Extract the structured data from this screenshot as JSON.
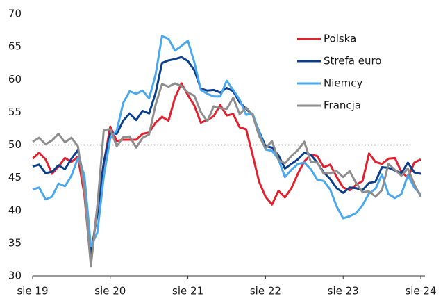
{
  "chart_data": {
    "type": "line",
    "categories": [
      "sie 19",
      null,
      null,
      null,
      null,
      null,
      null,
      null,
      null,
      null,
      null,
      null,
      "sie 20",
      null,
      null,
      null,
      null,
      null,
      null,
      null,
      null,
      null,
      null,
      null,
      "sie 21",
      null,
      null,
      null,
      null,
      null,
      null,
      null,
      null,
      null,
      null,
      null,
      "sie 22",
      null,
      null,
      null,
      null,
      null,
      null,
      null,
      null,
      null,
      null,
      null,
      "sie 23",
      null,
      null,
      null,
      null,
      null,
      null,
      null,
      null,
      null,
      null,
      null,
      "sie 24"
    ],
    "ylim": [
      30,
      70
    ],
    "yticks": [
      30,
      35,
      40,
      45,
      50,
      55,
      60,
      65,
      70
    ],
    "reference_line": 50,
    "legend": "upper right",
    "series": [
      {
        "name": "Polska",
        "color": "#e2202e",
        "values": [
          47.9,
          48.8,
          47.8,
          45.6,
          46.7,
          48.0,
          47.4,
          48.2,
          42.4,
          31.9,
          40.6,
          47.2,
          52.8,
          50.6,
          50.8,
          50.8,
          50.8,
          51.7,
          51.9,
          53.4,
          54.3,
          53.7,
          57.2,
          59.4,
          57.6,
          56.0,
          53.4,
          53.8,
          54.4,
          56.1,
          54.5,
          54.7,
          52.7,
          52.4,
          48.5,
          44.4,
          42.1,
          40.9,
          43.0,
          42.0,
          43.4,
          45.6,
          47.5,
          48.5,
          48.3,
          46.6,
          47.0,
          45.1,
          43.5,
          43.1,
          43.9,
          44.5,
          48.7,
          47.4,
          47.1,
          47.9,
          48.0,
          45.9,
          45.0,
          47.3,
          47.8
        ]
      },
      {
        "name": "Strefa euro",
        "color": "#0b3f8c",
        "values": [
          46.7,
          47.0,
          45.7,
          45.9,
          46.9,
          46.3,
          47.9,
          49.2,
          44.5,
          33.4,
          39.4,
          47.4,
          51.8,
          51.7,
          53.7,
          54.8,
          53.8,
          55.2,
          54.8,
          57.9,
          62.5,
          62.9,
          63.1,
          63.4,
          62.8,
          61.4,
          58.6,
          58.3,
          58.4,
          58.0,
          58.7,
          58.2,
          56.5,
          55.5,
          54.6,
          52.1,
          49.8,
          49.6,
          48.4,
          46.4,
          47.1,
          47.8,
          48.8,
          48.5,
          47.3,
          45.8,
          44.8,
          43.4,
          42.7,
          43.5,
          43.4,
          43.1,
          44.2,
          44.4,
          46.6,
          46.5,
          46.1,
          45.7,
          47.3,
          45.8,
          45.6
        ]
      },
      {
        "name": "Niemcy",
        "color": "#4aa8ef",
        "values": [
          43.2,
          43.5,
          41.7,
          42.1,
          44.1,
          43.7,
          45.3,
          48.0,
          45.4,
          34.5,
          36.6,
          45.2,
          51.0,
          52.2,
          56.4,
          58.2,
          57.8,
          58.3,
          57.1,
          60.7,
          66.6,
          66.2,
          64.4,
          65.1,
          65.9,
          62.6,
          58.4,
          57.8,
          57.4,
          57.4,
          59.8,
          58.4,
          56.9,
          54.6,
          54.8,
          52.0,
          49.3,
          49.1,
          47.8,
          45.1,
          46.2,
          47.1,
          47.3,
          46.3,
          44.7,
          44.5,
          43.2,
          40.6,
          38.8,
          39.1,
          39.6,
          40.8,
          42.6,
          43.3,
          45.5,
          42.5,
          41.9,
          42.5,
          45.4,
          43.5,
          42.4
        ]
      },
      {
        "name": "Francja",
        "color": "#8e8e8e",
        "values": [
          50.5,
          51.1,
          50.1,
          50.7,
          51.7,
          50.4,
          51.1,
          49.8,
          43.2,
          31.5,
          40.6,
          52.3,
          52.4,
          49.8,
          51.2,
          51.3,
          49.6,
          51.1,
          51.6,
          56.1,
          59.3,
          58.9,
          59.4,
          59.0,
          58.0,
          57.5,
          55.0,
          53.6,
          55.9,
          55.6,
          55.5,
          57.2,
          54.7,
          55.7,
          54.6,
          51.4,
          49.5,
          50.6,
          47.7,
          47.2,
          48.3,
          49.2,
          50.5,
          47.4,
          47.3,
          45.6,
          45.7,
          46.0,
          45.1,
          46.0,
          44.2,
          42.8,
          42.9,
          42.1,
          43.1,
          47.1,
          46.2,
          45.3,
          46.4,
          44.0,
          42.1
        ]
      }
    ]
  }
}
